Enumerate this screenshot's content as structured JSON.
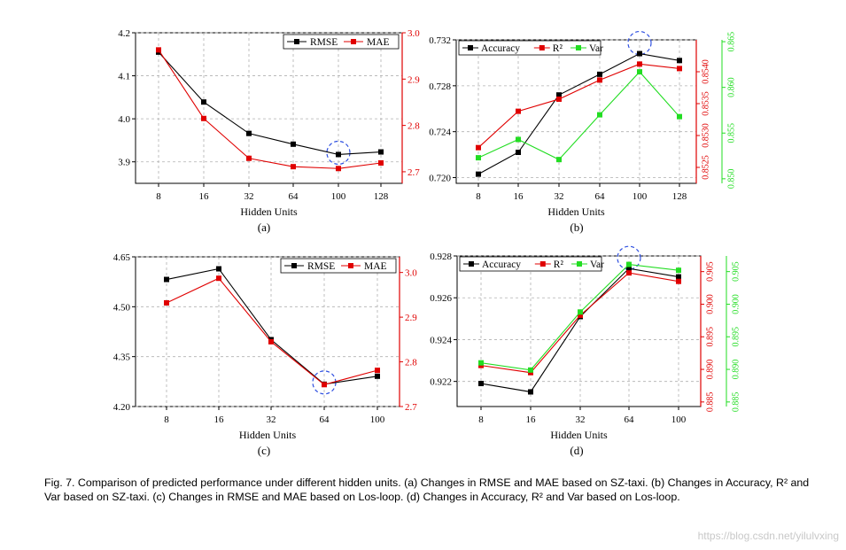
{
  "caption": "Fig. 7. Comparison of predicted performance under different hidden units. (a) Changes in RMSE and MAE based on SZ-taxi. (b) Changes in Accuracy, R² and Var based on SZ-taxi. (c) Changes in RMSE and MAE based on Los-loop. (d) Changes in Accuracy, R² and Var based on Los-loop.",
  "watermark": "https://blog.csdn.net/yilulvxing",
  "colors": {
    "black": "#000000",
    "red": "#e00000",
    "green": "#22dd22",
    "highlight": "#2e4fe0"
  },
  "chart_data": [
    {
      "id": "a",
      "type": "line",
      "label": "(a)",
      "xlabel": "Hidden Units",
      "categories": [
        "8",
        "16",
        "32",
        "64",
        "100",
        "128"
      ],
      "axes": [
        {
          "side": "left",
          "color": "black",
          "ylim": [
            3.85,
            4.2
          ],
          "ticks": [
            "3.9",
            "4.0",
            "4.1",
            "4.2"
          ]
        },
        {
          "side": "right",
          "color": "red",
          "ylim": [
            2.675,
            3.0
          ],
          "ticks": [
            "2.7",
            "2.8",
            "2.9",
            "3.0"
          ]
        }
      ],
      "series": [
        {
          "name": "RMSE",
          "axis": 0,
          "color": "black",
          "values": [
            4.155,
            4.039,
            3.966,
            3.941,
            3.917,
            3.923
          ]
        },
        {
          "name": "MAE",
          "axis": 1,
          "color": "red",
          "values": [
            2.963,
            2.815,
            2.729,
            2.711,
            2.707,
            2.719
          ]
        }
      ],
      "legend": {
        "position": "top-right",
        "items": [
          "RMSE",
          "MAE"
        ]
      },
      "highlight_category": "100"
    },
    {
      "id": "b",
      "type": "line",
      "label": "(b)",
      "xlabel": "Hidden Units",
      "categories": [
        "8",
        "16",
        "32",
        "64",
        "100",
        "128"
      ],
      "axes": [
        {
          "side": "left",
          "color": "black",
          "ylim": [
            0.7195,
            0.732
          ],
          "ticks": [
            "0.720",
            "0.724",
            "0.728",
            "0.732"
          ]
        },
        {
          "side": "right",
          "color": "red",
          "ylim": [
            0.85225,
            0.8545
          ],
          "ticks": [
            "0.8525",
            "0.8530",
            "0.8535",
            "0.8540"
          ]
        },
        {
          "side": "right2",
          "color": "green",
          "ylim": [
            0.8495,
            0.8652
          ],
          "ticks": [
            "0.850",
            "0.855",
            "0.860",
            "0.865"
          ]
        }
      ],
      "series": [
        {
          "name": "Accuracy",
          "axis": 0,
          "color": "black",
          "values": [
            0.7203,
            0.7222,
            0.7272,
            0.729,
            0.7308,
            0.7302
          ]
        },
        {
          "name": "R²",
          "axis": 1,
          "color": "red",
          "values": [
            0.85281,
            0.85338,
            0.85357,
            0.85387,
            0.85412,
            0.85405
          ]
        },
        {
          "name": "Var",
          "axis": 2,
          "color": "green",
          "values": [
            0.8523,
            0.8543,
            0.8521,
            0.857,
            0.8617,
            0.8568
          ]
        }
      ],
      "legend": {
        "position": "top-left",
        "items": [
          "Accuracy",
          "R²",
          "Var"
        ]
      },
      "highlight_category": "100"
    },
    {
      "id": "c",
      "type": "line",
      "label": "(c)",
      "xlabel": "Hidden Units",
      "categories": [
        "8",
        "16",
        "32",
        "64",
        "100"
      ],
      "axes": [
        {
          "side": "left",
          "color": "black",
          "ylim": [
            4.2,
            4.65
          ],
          "ticks": [
            "4.20",
            "4.35",
            "4.50",
            "4.65"
          ]
        },
        {
          "side": "right",
          "color": "red",
          "ylim": [
            2.7,
            3.035
          ],
          "ticks": [
            "2.7",
            "2.8",
            "2.9",
            "3.0"
          ]
        }
      ],
      "series": [
        {
          "name": "RMSE",
          "axis": 0,
          "color": "black",
          "values": [
            4.582,
            4.614,
            4.401,
            4.267,
            4.291
          ]
        },
        {
          "name": "MAE",
          "axis": 1,
          "color": "red",
          "values": [
            2.932,
            2.987,
            2.845,
            2.749,
            2.781
          ]
        }
      ],
      "legend": {
        "position": "top-right",
        "items": [
          "RMSE",
          "MAE"
        ]
      },
      "highlight_category": "64"
    },
    {
      "id": "d",
      "type": "line",
      "label": "(d)",
      "xlabel": "Hidden Units",
      "categories": [
        "8",
        "16",
        "32",
        "64",
        "100"
      ],
      "axes": [
        {
          "side": "left",
          "color": "black",
          "ylim": [
            0.9208,
            0.928
          ],
          "ticks": [
            "0.922",
            "0.924",
            "0.926",
            "0.928"
          ]
        },
        {
          "side": "right",
          "color": "red",
          "ylim": [
            0.8843,
            0.9074
          ],
          "ticks": [
            "0.885",
            "0.890",
            "0.895",
            "0.900",
            "0.905"
          ]
        },
        {
          "side": "right2",
          "color": "green",
          "ylim": [
            0.8843,
            0.9074
          ],
          "ticks": [
            "0.885",
            "0.890",
            "0.895",
            "0.900",
            "0.905"
          ]
        }
      ],
      "series": [
        {
          "name": "Accuracy",
          "axis": 0,
          "color": "black",
          "values": [
            0.9219,
            0.9215,
            0.9251,
            0.9274,
            0.927
          ]
        },
        {
          "name": "R²",
          "axis": 1,
          "color": "red",
          "values": [
            0.8906,
            0.8895,
            0.8983,
            0.9048,
            0.9035
          ]
        },
        {
          "name": "Var",
          "axis": 2,
          "color": "green",
          "values": [
            0.891,
            0.8899,
            0.8988,
            0.9061,
            0.9052
          ]
        }
      ],
      "legend": {
        "position": "top-left",
        "items": [
          "Accuracy",
          "R²",
          "Var"
        ]
      },
      "highlight_category": "64"
    }
  ]
}
